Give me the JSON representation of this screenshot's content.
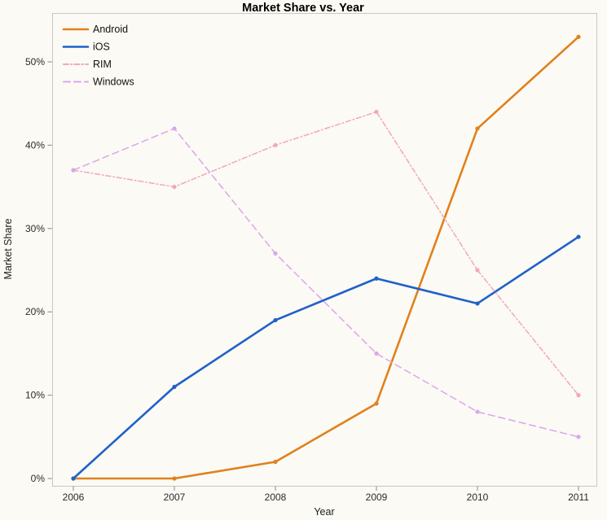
{
  "chart_data": {
    "type": "line",
    "title": "Market Share vs. Year",
    "xlabel": "Year",
    "ylabel": "Market Share",
    "x": [
      2006,
      2007,
      2008,
      2009,
      2010,
      2011
    ],
    "series": [
      {
        "name": "Android",
        "values": [
          0,
          0,
          2,
          9,
          42,
          53
        ],
        "color": "#e0811c",
        "dash": "solid",
        "width": 2.6
      },
      {
        "name": "iOS",
        "values": [
          0,
          11,
          19,
          24,
          21,
          29
        ],
        "color": "#2061c9",
        "dash": "solid",
        "width": 2.6
      },
      {
        "name": "RIM",
        "values": [
          37,
          35,
          40,
          44,
          25,
          10
        ],
        "color": "#f4a6bb",
        "dash": "dashdot",
        "width": 1.5
      },
      {
        "name": "Windows",
        "values": [
          37,
          42,
          27,
          15,
          8,
          5
        ],
        "color": "#dba6ec",
        "dash": "dashed",
        "width": 1.5
      }
    ],
    "ylim": [
      0,
      55
    ],
    "yticks": [
      0,
      10,
      20,
      30,
      40,
      50
    ],
    "ytick_labels": [
      "0%",
      "10%",
      "20%",
      "30%",
      "40%",
      "50%"
    ],
    "grid": false,
    "legend_position": "top-left",
    "frame_color": "#c9c7c0",
    "background_color": "#fbfaf4"
  }
}
